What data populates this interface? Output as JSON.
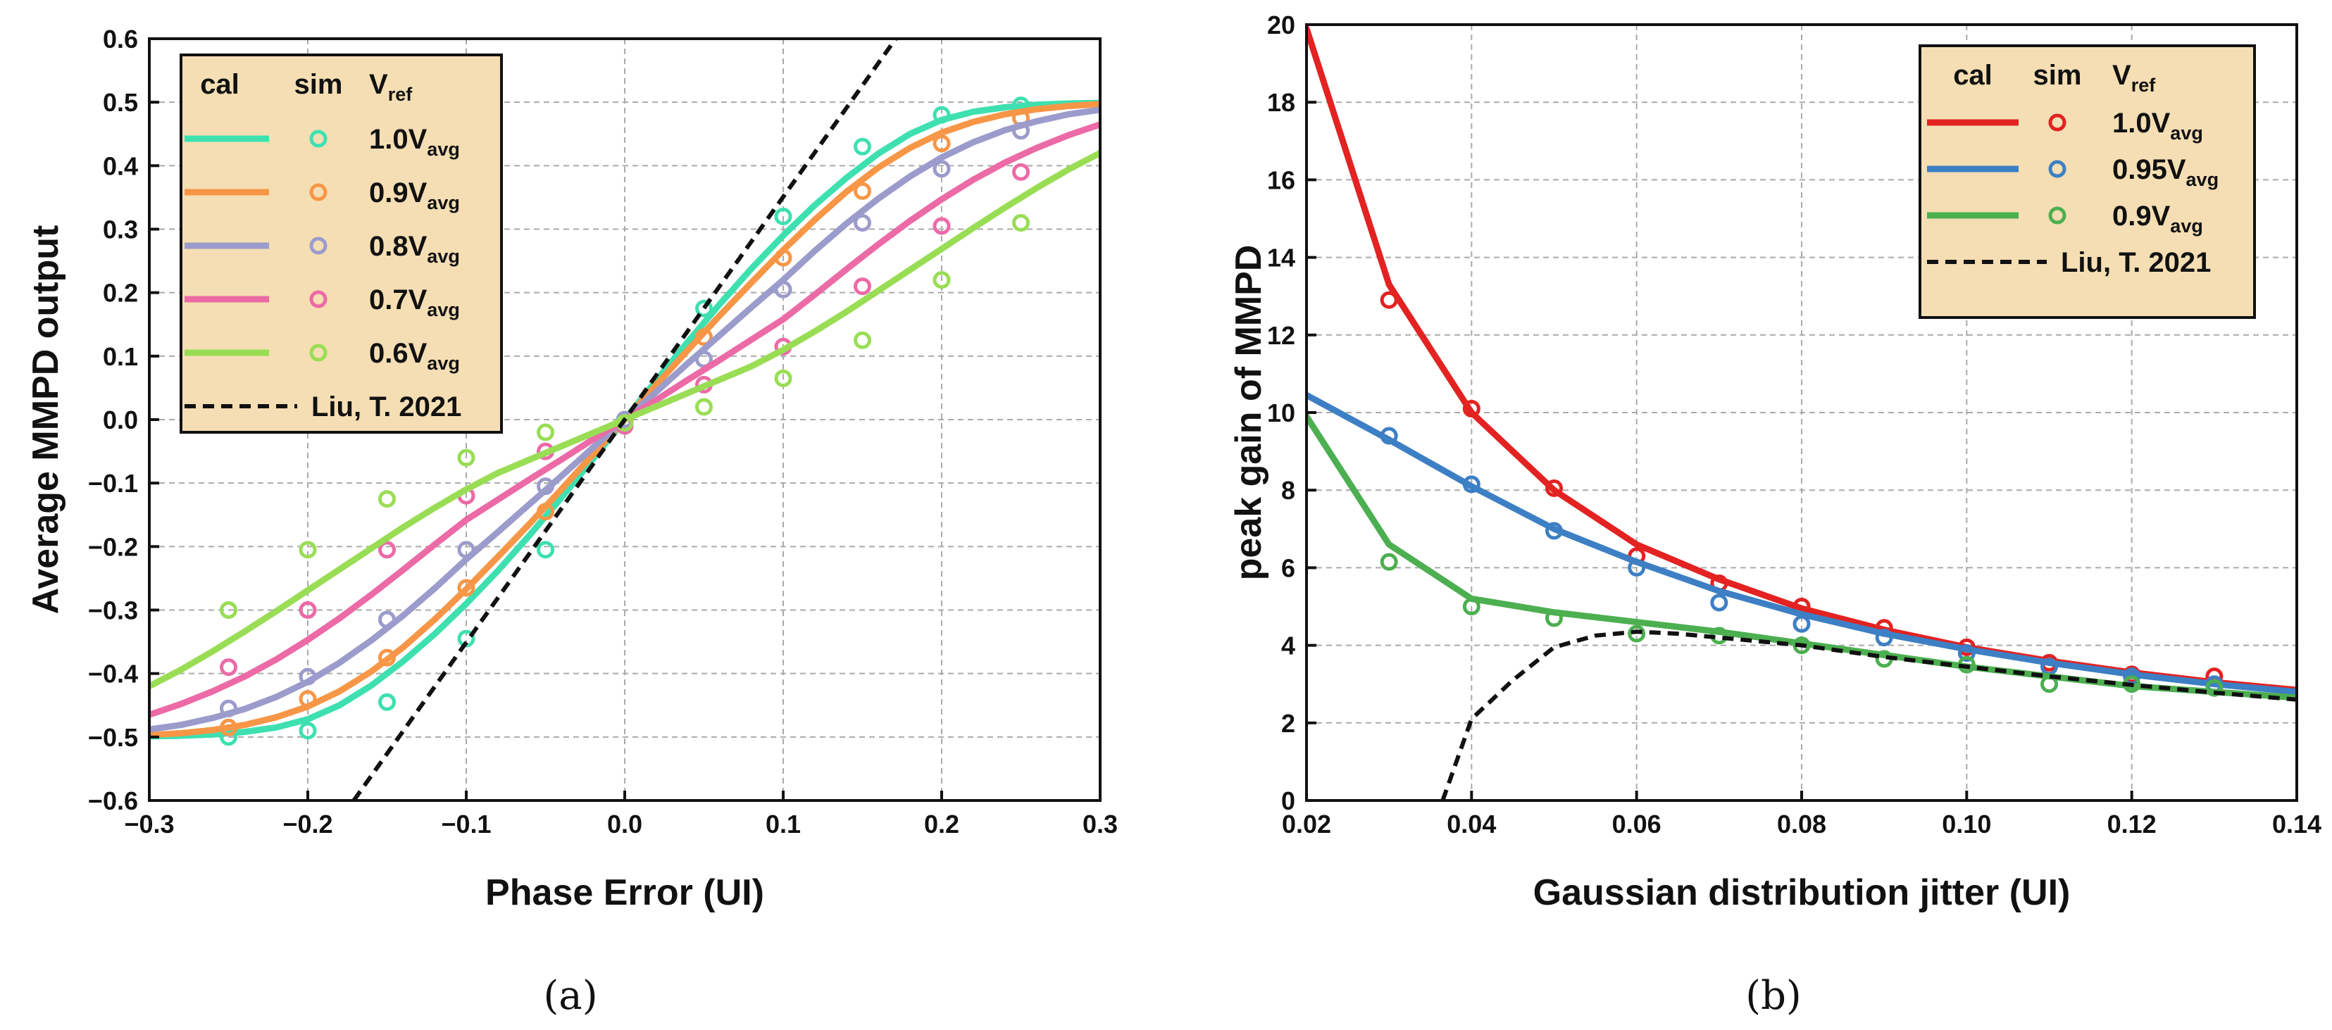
{
  "chart_data": [
    {
      "type": "line",
      "panel_label": "(a)",
      "xlabel": "Phase Error (UI)",
      "ylabel": "Average MMPD output",
      "xlim": [
        -0.3,
        0.3
      ],
      "ylim": [
        -0.6,
        0.6
      ],
      "xticks": [
        -0.3,
        -0.2,
        -0.1,
        0.0,
        0.1,
        0.2,
        0.3
      ],
      "xtick_labels": [
        "−0.3",
        "−0.2",
        "−0.1",
        "0.0",
        "0.1",
        "0.2",
        "0.3"
      ],
      "yticks": [
        -0.6,
        -0.5,
        -0.4,
        -0.3,
        -0.2,
        -0.1,
        0.0,
        0.1,
        0.2,
        0.3,
        0.4,
        0.5,
        0.6
      ],
      "ytick_labels": [
        "−0.6",
        "−0.5",
        "−0.4",
        "−0.3",
        "−0.2",
        "−0.1",
        "0.0",
        "0.1",
        "0.2",
        "0.3",
        "0.4",
        "0.5",
        "0.6"
      ],
      "grid": true,
      "legend": {
        "placement": "top-left",
        "headers": [
          "cal",
          "sim",
          "V",
          "ref"
        ],
        "entries": [
          {
            "base": "1.0V",
            "sub": "avg"
          },
          {
            "base": "0.9V",
            "sub": "avg"
          },
          {
            "base": "0.8V",
            "sub": "avg"
          },
          {
            "base": "0.7V",
            "sub": "avg"
          },
          {
            "base": "0.6V",
            "sub": "avg"
          },
          {
            "base": "Liu, T. 2021",
            "sub": ""
          }
        ]
      },
      "sim_x": [
        -0.25,
        -0.2,
        -0.15,
        -0.1,
        -0.05,
        0.0,
        0.05,
        0.1,
        0.15,
        0.2,
        0.25
      ],
      "cal_x": [
        -0.3,
        -0.28,
        -0.26,
        -0.24,
        -0.22,
        -0.2,
        -0.18,
        -0.16,
        -0.14,
        -0.12,
        -0.1,
        -0.08,
        -0.06,
        -0.04,
        -0.02,
        0.0,
        0.02,
        0.04,
        0.06,
        0.08,
        0.1,
        0.12,
        0.14,
        0.16,
        0.18,
        0.2,
        0.22,
        0.24,
        0.26,
        0.28,
        0.3
      ],
      "series": [
        {
          "name": "1.0Vavg",
          "color": "#3ee0b0",
          "cal": [
            -0.499,
            -0.498,
            -0.496,
            -0.492,
            -0.485,
            -0.472,
            -0.45,
            -0.419,
            -0.381,
            -0.338,
            -0.29,
            -0.238,
            -0.182,
            -0.123,
            -0.062,
            0.0,
            0.062,
            0.123,
            0.182,
            0.238,
            0.29,
            0.338,
            0.381,
            0.419,
            0.45,
            0.472,
            0.485,
            0.492,
            0.496,
            0.498,
            0.499
          ],
          "sim": [
            -0.5,
            -0.49,
            -0.445,
            -0.345,
            -0.205,
            -0.005,
            0.175,
            0.32,
            0.43,
            0.48,
            0.495
          ]
        },
        {
          "name": "0.9Vavg",
          "color": "#f79646",
          "cal": [
            -0.497,
            -0.494,
            -0.489,
            -0.481,
            -0.469,
            -0.452,
            -0.428,
            -0.397,
            -0.359,
            -0.315,
            -0.267,
            -0.216,
            -0.164,
            -0.11,
            -0.055,
            0.0,
            0.055,
            0.11,
            0.164,
            0.216,
            0.267,
            0.315,
            0.359,
            0.397,
            0.428,
            0.452,
            0.469,
            0.481,
            0.489,
            0.494,
            0.497
          ],
          "sim": [
            -0.485,
            -0.44,
            -0.375,
            -0.265,
            -0.145,
            -0.005,
            0.13,
            0.255,
            0.36,
            0.435,
            0.475
          ]
        },
        {
          "name": "0.8Vavg",
          "color": "#9b9bcc",
          "cal": [
            -0.488,
            -0.481,
            -0.47,
            -0.456,
            -0.437,
            -0.413,
            -0.383,
            -0.348,
            -0.309,
            -0.266,
            -0.22,
            -0.177,
            -0.133,
            -0.089,
            -0.044,
            0.0,
            0.044,
            0.089,
            0.133,
            0.177,
            0.22,
            0.266,
            0.309,
            0.348,
            0.383,
            0.413,
            0.437,
            0.456,
            0.47,
            0.481,
            0.488
          ],
          "sim": [
            -0.455,
            -0.405,
            -0.315,
            -0.205,
            -0.105,
            0.0,
            0.095,
            0.205,
            0.31,
            0.395,
            0.455
          ]
        },
        {
          "name": "0.7Vavg",
          "color": "#ec6aa6",
          "cal": [
            -0.465,
            -0.448,
            -0.428,
            -0.405,
            -0.378,
            -0.347,
            -0.313,
            -0.276,
            -0.237,
            -0.197,
            -0.158,
            -0.126,
            -0.094,
            -0.063,
            -0.031,
            0.0,
            0.031,
            0.063,
            0.094,
            0.126,
            0.158,
            0.197,
            0.237,
            0.276,
            0.313,
            0.347,
            0.378,
            0.405,
            0.428,
            0.448,
            0.465
          ],
          "sim": [
            -0.39,
            -0.3,
            -0.205,
            -0.12,
            -0.05,
            -0.01,
            0.055,
            0.115,
            0.21,
            0.305,
            0.39
          ]
        },
        {
          "name": "0.6Vavg",
          "color": "#99dd55",
          "cal": [
            -0.42,
            -0.394,
            -0.365,
            -0.334,
            -0.302,
            -0.269,
            -0.236,
            -0.203,
            -0.17,
            -0.139,
            -0.11,
            -0.084,
            -0.063,
            -0.042,
            -0.021,
            0.0,
            0.021,
            0.042,
            0.063,
            0.084,
            0.11,
            0.139,
            0.17,
            0.203,
            0.236,
            0.269,
            0.302,
            0.334,
            0.365,
            0.394,
            0.42
          ],
          "sim": [
            -0.3,
            -0.205,
            -0.125,
            -0.06,
            -0.02,
            -0.005,
            0.02,
            0.065,
            0.125,
            0.22,
            0.31
          ]
        },
        {
          "name": "Liu, T. 2021",
          "color": "#111111",
          "dashed": true,
          "line_x": [
            -0.171,
            0.171
          ],
          "line_y": [
            -0.6,
            0.6
          ]
        }
      ]
    },
    {
      "type": "line",
      "panel_label": "(b)",
      "xlabel": "Gaussian distribution jitter (UI)",
      "ylabel": "peak gain of MMPD",
      "xlim": [
        0.02,
        0.14
      ],
      "ylim": [
        0,
        20
      ],
      "xticks": [
        0.02,
        0.04,
        0.06,
        0.08,
        0.1,
        0.12,
        0.14
      ],
      "xtick_labels": [
        "0.02",
        "0.04",
        "0.06",
        "0.08",
        "0.10",
        "0.12",
        "0.14"
      ],
      "yticks": [
        0,
        2,
        4,
        6,
        8,
        10,
        12,
        14,
        16,
        18,
        20
      ],
      "ytick_labels": [
        "0",
        "2",
        "4",
        "6",
        "8",
        "10",
        "12",
        "14",
        "16",
        "18",
        "20"
      ],
      "grid": true,
      "legend": {
        "placement": "top-right",
        "headers": [
          "cal",
          "sim",
          "V",
          "ref"
        ],
        "entries": [
          {
            "base": "1.0V",
            "sub": "avg"
          },
          {
            "base": "0.95V",
            "sub": "avg"
          },
          {
            "base": "0.9V",
            "sub": "avg"
          },
          {
            "base": "Liu, T. 2021",
            "sub": ""
          }
        ]
      },
      "cal_x": [
        0.02,
        0.03,
        0.04,
        0.05,
        0.06,
        0.07,
        0.08,
        0.09,
        0.1,
        0.11,
        0.12,
        0.13,
        0.14
      ],
      "sim_x": [
        0.03,
        0.04,
        0.05,
        0.06,
        0.07,
        0.08,
        0.09,
        0.1,
        0.11,
        0.12,
        0.13
      ],
      "series": [
        {
          "name": "1.0Vavg",
          "color": "#e32222",
          "cal": [
            19.9,
            13.3,
            10.0,
            8.0,
            6.6,
            5.7,
            4.95,
            4.4,
            3.95,
            3.6,
            3.3,
            3.05,
            2.85
          ],
          "sim": [
            12.9,
            10.1,
            8.05,
            6.3,
            5.6,
            5.0,
            4.45,
            3.95,
            3.55,
            3.25,
            3.2
          ]
        },
        {
          "name": "0.95Vavg",
          "color": "#3d7fc4",
          "cal": [
            10.45,
            9.3,
            8.1,
            7.0,
            6.15,
            5.4,
            4.8,
            4.3,
            3.9,
            3.55,
            3.25,
            3.0,
            2.8
          ],
          "sim": [
            9.4,
            8.15,
            6.95,
            6.0,
            5.1,
            4.55,
            4.2,
            3.8,
            3.45,
            3.2,
            3.0
          ]
        },
        {
          "name": "0.9Vavg",
          "color": "#4caf50",
          "cal": [
            9.9,
            6.6,
            5.2,
            4.85,
            4.6,
            4.35,
            4.05,
            3.75,
            3.45,
            3.2,
            2.95,
            2.8,
            2.65
          ],
          "sim": [
            6.15,
            5.0,
            4.7,
            4.3,
            4.25,
            4.0,
            3.65,
            3.5,
            3.0,
            3.0,
            2.9
          ]
        },
        {
          "name": "Liu, T. 2021",
          "color": "#111111",
          "dashed": true,
          "line_x": [
            0.0365,
            0.04,
            0.045,
            0.05,
            0.055,
            0.06,
            0.065,
            0.07,
            0.08,
            0.09,
            0.1,
            0.11,
            0.12,
            0.13,
            0.14
          ],
          "line_y": [
            0.0,
            2.1,
            3.1,
            3.95,
            4.25,
            4.35,
            4.3,
            4.2,
            4.0,
            3.7,
            3.45,
            3.2,
            2.98,
            2.78,
            2.6
          ]
        }
      ]
    }
  ]
}
